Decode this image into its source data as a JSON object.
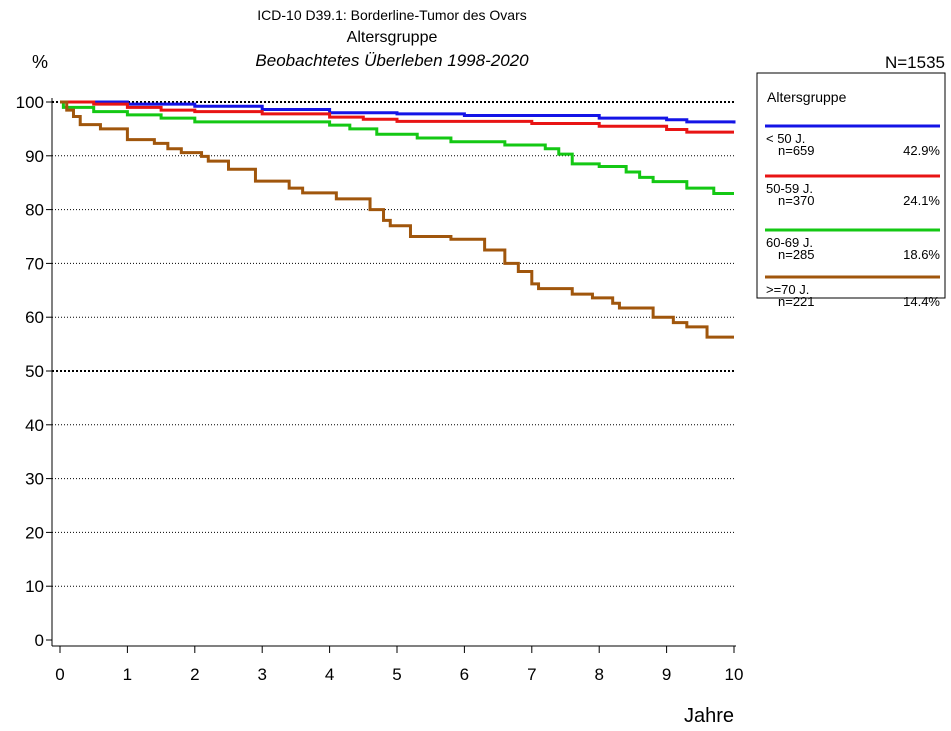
{
  "chart_data": {
    "type": "line",
    "step": true,
    "title": "ICD-10 D39.1: Borderline-Tumor des Ovars",
    "subtitle": "Altersgruppe",
    "subtitle2": "Beobachtetes Überleben 1998-2020",
    "y_label": "%",
    "x_label": "Jahre",
    "total": "N=1535",
    "xlim": [
      0,
      10
    ],
    "xticks": [
      0,
      1,
      2,
      3,
      4,
      5,
      6,
      7,
      8,
      9,
      10
    ],
    "ylim": [
      0,
      100
    ],
    "yticks": [
      0,
      10,
      20,
      30,
      40,
      50,
      60,
      70,
      80,
      90,
      100
    ],
    "grid": true,
    "legend_title": "Altersgruppe",
    "legend_position": "right",
    "series": [
      {
        "name": "< 50 J.",
        "n_label": "n=659",
        "share_label": "42.9%",
        "color": "#1414e6",
        "x": [
          0,
          1,
          2,
          3,
          4,
          5,
          6,
          8,
          9,
          9.3,
          10
        ],
        "values": [
          100,
          99.6,
          99.2,
          98.6,
          98.0,
          97.8,
          97.5,
          97.0,
          96.7,
          96.3,
          96.0
        ]
      },
      {
        "name": "50-59 J.",
        "n_label": "n=370",
        "share_label": "24.1%",
        "color": "#e81414",
        "x": [
          0,
          0.5,
          1,
          1.5,
          2,
          3,
          4,
          4.5,
          5,
          7,
          8,
          9,
          9.3,
          10
        ],
        "values": [
          100,
          99.6,
          99.0,
          98.5,
          98.2,
          97.8,
          97.2,
          96.8,
          96.4,
          96.0,
          95.5,
          94.9,
          94.4,
          94.4
        ]
      },
      {
        "name": "60-69 J.",
        "n_label": "n=285",
        "share_label": "18.6%",
        "color": "#14c814",
        "x": [
          0,
          0.05,
          0.5,
          1,
          1.5,
          2,
          4,
          4.3,
          4.7,
          5.3,
          5.8,
          6.6,
          7.2,
          7.4,
          7.6,
          8,
          8.4,
          8.6,
          8.8,
          9.3,
          9.7,
          10
        ],
        "values": [
          100,
          99.0,
          98.2,
          97.6,
          97.0,
          96.3,
          95.7,
          95.0,
          94.0,
          93.3,
          92.6,
          92.0,
          91.3,
          90.3,
          88.5,
          88.0,
          87.0,
          86.0,
          85.2,
          84.0,
          83.0,
          83.0
        ]
      },
      {
        "name": ">=70 J.",
        "n_label": "n=221",
        "share_label": "14.4%",
        "color": "#a0560c",
        "x": [
          0,
          0.1,
          0.2,
          0.3,
          0.6,
          1,
          1.4,
          1.6,
          1.8,
          2.1,
          2.2,
          2.5,
          2.9,
          3.4,
          3.6,
          4.1,
          4.6,
          4.8,
          4.9,
          5.2,
          5.8,
          6.3,
          6.6,
          6.8,
          7.0,
          7.1,
          7.6,
          7.9,
          8.2,
          8.3,
          8.8,
          9.1,
          9.3,
          9.6,
          10
        ],
        "values": [
          100,
          98.5,
          97.3,
          95.8,
          95.0,
          93.0,
          92.3,
          91.3,
          90.6,
          89.9,
          89.0,
          87.5,
          85.3,
          84.0,
          83.1,
          82.0,
          80.0,
          78.0,
          77.0,
          75.0,
          74.5,
          72.5,
          70.0,
          68.5,
          66.2,
          65.3,
          64.3,
          63.6,
          62.6,
          61.7,
          60.0,
          59.0,
          58.2,
          56.3,
          56.3
        ]
      }
    ]
  }
}
